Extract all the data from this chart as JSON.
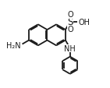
{
  "bg": "#ffffff",
  "lc": "#1a1a1a",
  "lw": 1.3,
  "fs": 7.0,
  "bl": 0.115,
  "labels": {
    "S": "S",
    "O": "O",
    "OH": "OH",
    "NH": "NH",
    "NH2": "H₂N"
  }
}
